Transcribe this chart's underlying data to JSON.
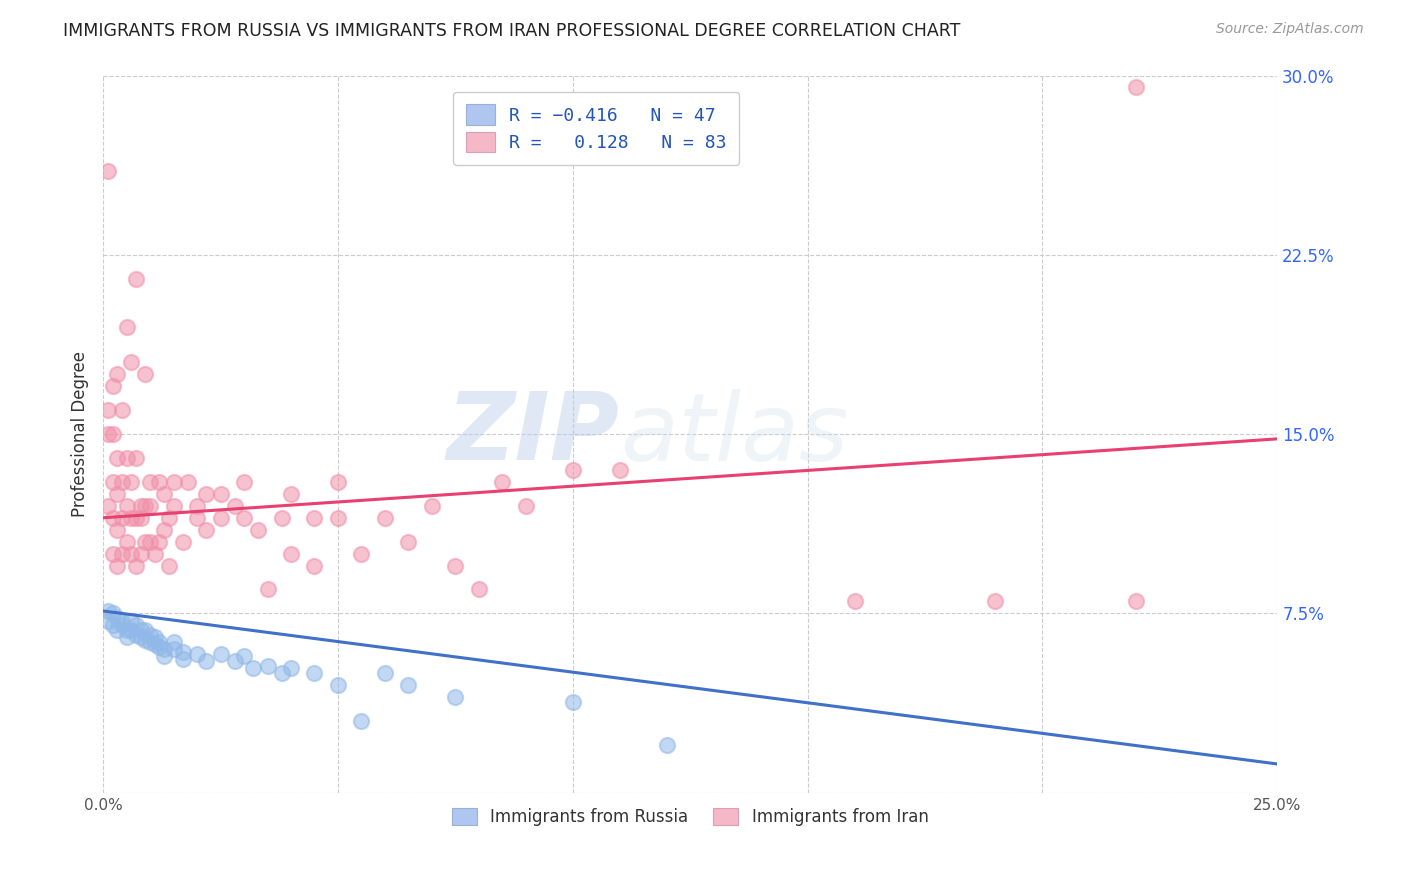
{
  "title": "IMMIGRANTS FROM RUSSIA VS IMMIGRANTS FROM IRAN PROFESSIONAL DEGREE CORRELATION CHART",
  "source": "Source: ZipAtlas.com",
  "ylabel": "Professional Degree",
  "xlim": [
    0.0,
    0.25
  ],
  "ylim": [
    0.0,
    0.3
  ],
  "xticks": [
    0.0,
    0.05,
    0.1,
    0.15,
    0.2,
    0.25
  ],
  "yticks": [
    0.0,
    0.075,
    0.15,
    0.225,
    0.3
  ],
  "xticklabels": [
    "0.0%",
    "",
    "",
    "",
    "",
    "25.0%"
  ],
  "yticklabels": [
    "",
    "7.5%",
    "15.0%",
    "22.5%",
    "30.0%"
  ],
  "russia_color": "#90b8e8",
  "iran_color": "#f090a8",
  "russia_line_color": "#4070c8",
  "iran_line_color": "#e84070",
  "russia_line": [
    0.0,
    0.076,
    0.25,
    0.012
  ],
  "iran_line": [
    0.0,
    0.115,
    0.25,
    0.148
  ],
  "watermark_zip": "ZIP",
  "watermark_atlas": "atlas",
  "background_color": "#ffffff",
  "grid_color": "#cccccc",
  "russia_scatter": [
    [
      0.001,
      0.076
    ],
    [
      0.001,
      0.072
    ],
    [
      0.002,
      0.07
    ],
    [
      0.002,
      0.075
    ],
    [
      0.003,
      0.068
    ],
    [
      0.003,
      0.073
    ],
    [
      0.004,
      0.07
    ],
    [
      0.004,
      0.072
    ],
    [
      0.005,
      0.068
    ],
    [
      0.005,
      0.065
    ],
    [
      0.006,
      0.072
    ],
    [
      0.006,
      0.068
    ],
    [
      0.007,
      0.066
    ],
    [
      0.007,
      0.07
    ],
    [
      0.008,
      0.065
    ],
    [
      0.008,
      0.068
    ],
    [
      0.009,
      0.064
    ],
    [
      0.009,
      0.068
    ],
    [
      0.01,
      0.063
    ],
    [
      0.01,
      0.066
    ],
    [
      0.011,
      0.062
    ],
    [
      0.011,
      0.065
    ],
    [
      0.012,
      0.061
    ],
    [
      0.012,
      0.063
    ],
    [
      0.013,
      0.06
    ],
    [
      0.013,
      0.057
    ],
    [
      0.015,
      0.06
    ],
    [
      0.015,
      0.063
    ],
    [
      0.017,
      0.056
    ],
    [
      0.017,
      0.059
    ],
    [
      0.02,
      0.058
    ],
    [
      0.022,
      0.055
    ],
    [
      0.025,
      0.058
    ],
    [
      0.028,
      0.055
    ],
    [
      0.03,
      0.057
    ],
    [
      0.032,
      0.052
    ],
    [
      0.035,
      0.053
    ],
    [
      0.038,
      0.05
    ],
    [
      0.04,
      0.052
    ],
    [
      0.045,
      0.05
    ],
    [
      0.05,
      0.045
    ],
    [
      0.055,
      0.03
    ],
    [
      0.06,
      0.05
    ],
    [
      0.065,
      0.045
    ],
    [
      0.075,
      0.04
    ],
    [
      0.1,
      0.038
    ],
    [
      0.12,
      0.02
    ]
  ],
  "iran_scatter": [
    [
      0.001,
      0.12
    ],
    [
      0.001,
      0.15
    ],
    [
      0.001,
      0.16
    ],
    [
      0.001,
      0.26
    ],
    [
      0.002,
      0.1
    ],
    [
      0.002,
      0.115
    ],
    [
      0.002,
      0.13
    ],
    [
      0.002,
      0.15
    ],
    [
      0.002,
      0.17
    ],
    [
      0.003,
      0.095
    ],
    [
      0.003,
      0.11
    ],
    [
      0.003,
      0.125
    ],
    [
      0.003,
      0.14
    ],
    [
      0.003,
      0.175
    ],
    [
      0.004,
      0.1
    ],
    [
      0.004,
      0.115
    ],
    [
      0.004,
      0.13
    ],
    [
      0.004,
      0.16
    ],
    [
      0.005,
      0.105
    ],
    [
      0.005,
      0.12
    ],
    [
      0.005,
      0.14
    ],
    [
      0.005,
      0.195
    ],
    [
      0.006,
      0.1
    ],
    [
      0.006,
      0.115
    ],
    [
      0.006,
      0.13
    ],
    [
      0.006,
      0.18
    ],
    [
      0.007,
      0.095
    ],
    [
      0.007,
      0.115
    ],
    [
      0.007,
      0.14
    ],
    [
      0.007,
      0.215
    ],
    [
      0.008,
      0.1
    ],
    [
      0.008,
      0.115
    ],
    [
      0.008,
      0.12
    ],
    [
      0.009,
      0.105
    ],
    [
      0.009,
      0.12
    ],
    [
      0.009,
      0.175
    ],
    [
      0.01,
      0.105
    ],
    [
      0.01,
      0.12
    ],
    [
      0.01,
      0.13
    ],
    [
      0.011,
      0.1
    ],
    [
      0.012,
      0.105
    ],
    [
      0.012,
      0.13
    ],
    [
      0.013,
      0.11
    ],
    [
      0.013,
      0.125
    ],
    [
      0.014,
      0.095
    ],
    [
      0.014,
      0.115
    ],
    [
      0.015,
      0.12
    ],
    [
      0.015,
      0.13
    ],
    [
      0.017,
      0.105
    ],
    [
      0.018,
      0.13
    ],
    [
      0.02,
      0.115
    ],
    [
      0.02,
      0.12
    ],
    [
      0.022,
      0.11
    ],
    [
      0.022,
      0.125
    ],
    [
      0.025,
      0.115
    ],
    [
      0.025,
      0.125
    ],
    [
      0.028,
      0.12
    ],
    [
      0.03,
      0.115
    ],
    [
      0.03,
      0.13
    ],
    [
      0.033,
      0.11
    ],
    [
      0.035,
      0.085
    ],
    [
      0.038,
      0.115
    ],
    [
      0.04,
      0.125
    ],
    [
      0.04,
      0.1
    ],
    [
      0.045,
      0.095
    ],
    [
      0.045,
      0.115
    ],
    [
      0.05,
      0.115
    ],
    [
      0.05,
      0.13
    ],
    [
      0.055,
      0.1
    ],
    [
      0.06,
      0.115
    ],
    [
      0.065,
      0.105
    ],
    [
      0.07,
      0.12
    ],
    [
      0.075,
      0.095
    ],
    [
      0.08,
      0.085
    ],
    [
      0.085,
      0.13
    ],
    [
      0.09,
      0.12
    ],
    [
      0.1,
      0.135
    ],
    [
      0.11,
      0.135
    ],
    [
      0.16,
      0.08
    ],
    [
      0.19,
      0.08
    ],
    [
      0.22,
      0.295
    ],
    [
      0.22,
      0.08
    ]
  ]
}
